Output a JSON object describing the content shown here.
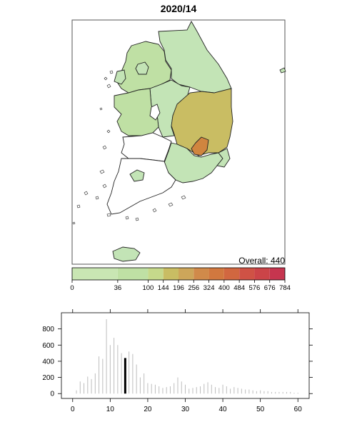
{
  "map": {
    "title": "2020/14",
    "overall_label": "Overall: 440"
  },
  "legend": {
    "tick_labels": [
      "0",
      "36",
      "100",
      "144",
      "196",
      "256",
      "324",
      "400",
      "484",
      "576",
      "676",
      "784"
    ],
    "tick_values": [
      0,
      36,
      100,
      144,
      196,
      256,
      324,
      400,
      484,
      576,
      676,
      784
    ],
    "colors": [
      "#c9e6b3",
      "#bfe0a4",
      "#c6d98b",
      "#c9bd63",
      "#cda65a",
      "#d08a4a",
      "#d1783f",
      "#d16740",
      "#cf5245",
      "#cb4448",
      "#c6354f",
      "#c1275a"
    ],
    "regions": [
      {
        "color": "#c3e4b6"
      },
      {
        "color": "#bfe0a4"
      },
      {
        "color": "#c9bd63"
      },
      {
        "color": "#d0853f"
      },
      {
        "color": "#ffffff"
      }
    ]
  },
  "chart_data": {
    "type": "bar",
    "x": [
      1,
      2,
      3,
      4,
      5,
      6,
      7,
      8,
      9,
      10,
      11,
      12,
      13,
      14,
      15,
      16,
      17,
      18,
      19,
      20,
      21,
      22,
      23,
      24,
      25,
      26,
      27,
      28,
      29,
      30,
      31,
      32,
      33,
      34,
      35,
      36,
      37,
      38,
      39,
      40,
      41,
      42,
      43,
      44,
      45,
      46,
      47,
      48,
      49,
      50,
      51,
      52,
      53,
      54,
      55,
      56,
      57,
      58,
      59,
      60
    ],
    "values": [
      40,
      150,
      130,
      210,
      180,
      250,
      460,
      430,
      920,
      600,
      690,
      600,
      500,
      440,
      520,
      490,
      360,
      200,
      250,
      130,
      120,
      110,
      90,
      70,
      80,
      90,
      130,
      200,
      150,
      110,
      60,
      70,
      80,
      90,
      120,
      140,
      110,
      80,
      70,
      110,
      90,
      60,
      80,
      70,
      60,
      50,
      50,
      40,
      30,
      40,
      30,
      30,
      20,
      20,
      20,
      20,
      20,
      20,
      10,
      10
    ],
    "highlight_x": 14,
    "xlim": [
      -3,
      63
    ],
    "ylim": [
      -60,
      1000
    ],
    "x_ticks": [
      0,
      10,
      20,
      30,
      40,
      50,
      60
    ],
    "y_ticks": [
      0,
      200,
      400,
      600,
      800
    ]
  }
}
